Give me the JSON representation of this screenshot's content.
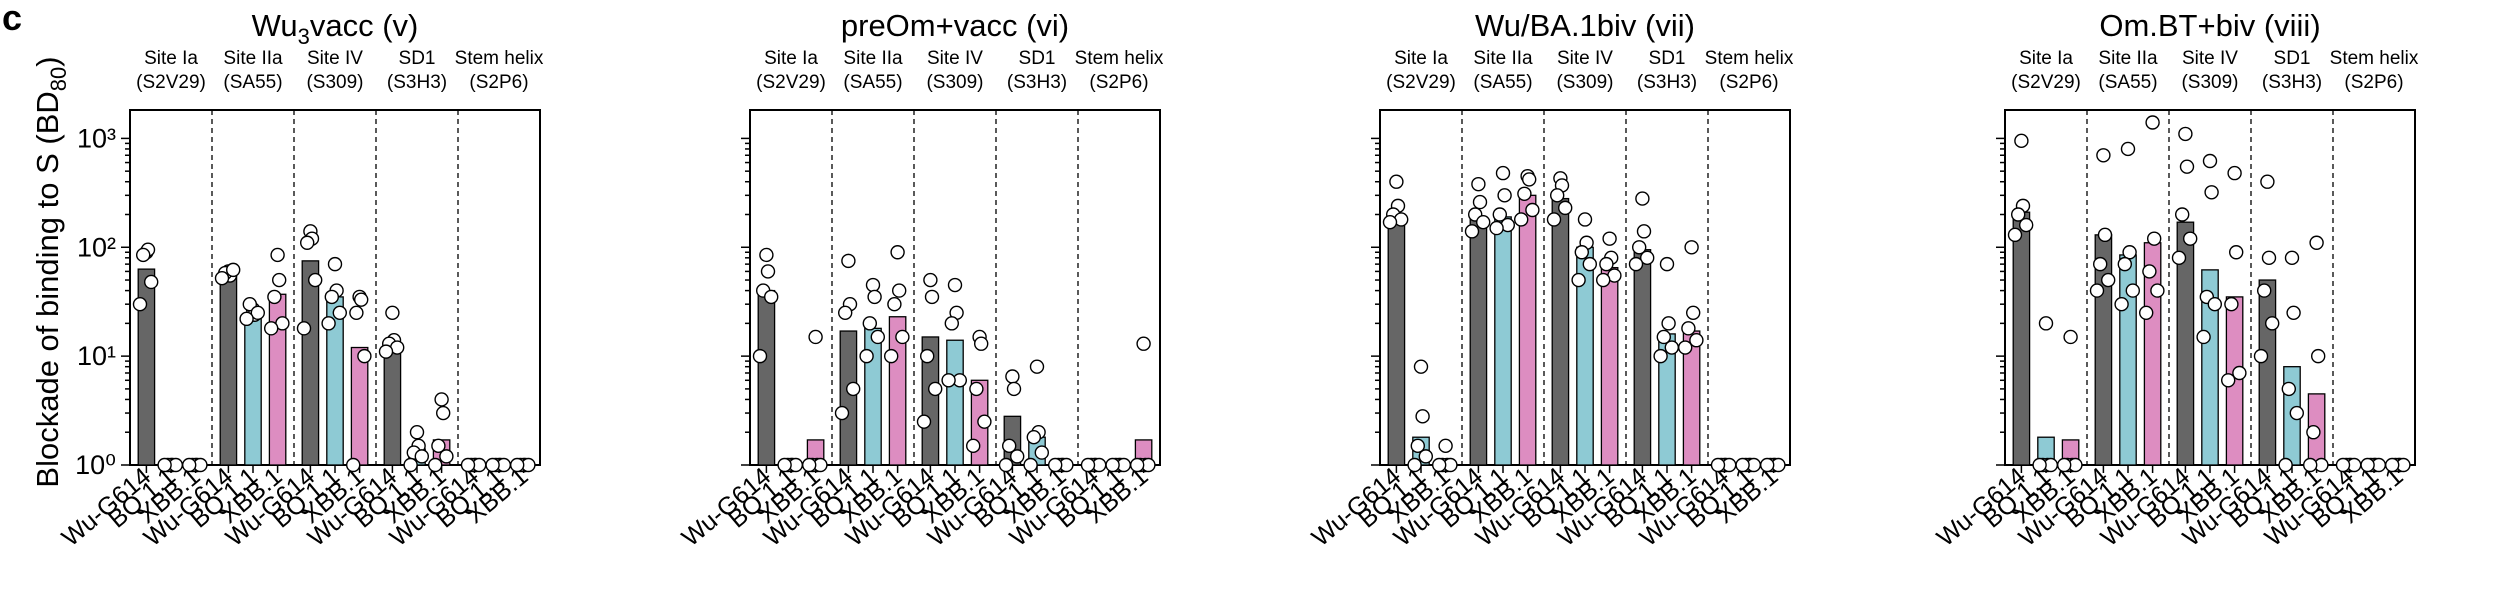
{
  "figure_label": "c",
  "y_axis_label": "Blockade of binding to S (BD",
  "y_axis_label_sub": "80",
  "y_axis_label_close": ")",
  "colors": {
    "Wu-G614": "#666666",
    "BQ.1.1": "#8ecad4",
    "XBB.1": "#dd8dc1",
    "axis": "#000000",
    "point_fill": "#ffffff"
  },
  "chart_data": [
    {
      "type": "bar",
      "title_parts": [
        "Wu",
        "3",
        "vacc (v)"
      ],
      "title_plain": "Wu3vacc (v)",
      "categories": [
        "Wu-G614",
        "BQ.1.1",
        "XBB.1"
      ],
      "y_scale": "log",
      "ylim": [
        1,
        1000
      ],
      "yticks": [
        "10³",
        "10²",
        "10¹",
        "10⁰"
      ],
      "groups": [
        {
          "site": "Site Ia",
          "antibody": "(S2V29)",
          "bars": [
            63,
            1,
            1
          ],
          "points": [
            [
              90,
              95,
              85,
              48,
              30
            ],
            [
              1,
              1,
              1,
              1,
              1
            ],
            [
              1,
              1,
              1,
              1,
              1
            ]
          ]
        },
        {
          "site": "Site IIa",
          "antibody": "(SA55)",
          "bars": [
            57,
            25,
            37
          ],
          "points": [
            [
              60,
              55,
              58,
              62,
              52
            ],
            [
              27,
              24,
              30,
              25,
              22
            ],
            [
              85,
              50,
              35,
              20,
              18
            ]
          ]
        },
        {
          "site": "Site IV",
          "antibody": "(S309)",
          "bars": [
            75,
            35,
            12
          ],
          "points": [
            [
              140,
              120,
              110,
              50,
              18
            ],
            [
              70,
              40,
              35,
              25,
              20
            ],
            [
              35,
              33,
              25,
              10,
              1
            ]
          ]
        },
        {
          "site": "SD1",
          "antibody": "(S3H3)",
          "bars": [
            12,
            1.4,
            1.7
          ],
          "points": [
            [
              25,
              14,
              13,
              12,
              11
            ],
            [
              2,
              1.5,
              1.3,
              1.2,
              1
            ],
            [
              4,
              3,
              1.5,
              1.2,
              1
            ]
          ]
        },
        {
          "site": "Stem helix",
          "antibody": "(S2P6)",
          "bars": [
            1,
            1,
            1
          ],
          "points": [
            [
              1,
              1,
              1,
              1,
              1
            ],
            [
              1,
              1,
              1,
              1,
              1
            ],
            [
              1,
              1,
              1,
              1,
              1
            ]
          ]
        }
      ]
    },
    {
      "type": "bar",
      "title_parts": [
        "preOm+vacc (vi)",
        "",
        ""
      ],
      "title_plain": "preOm+vacc (vi)",
      "categories": [
        "Wu-G614",
        "BQ.1.1",
        "XBB.1"
      ],
      "y_scale": "log",
      "ylim": [
        1,
        1000
      ],
      "groups": [
        {
          "site": "Site Ia",
          "antibody": "(S2V29)",
          "bars": [
            40,
            1,
            1.7
          ],
          "points": [
            [
              85,
              60,
              40,
              35,
              10
            ],
            [
              1,
              1,
              1,
              1,
              1
            ],
            [
              15,
              1,
              1,
              1,
              1
            ]
          ]
        },
        {
          "site": "Site IIa",
          "antibody": "(SA55)",
          "bars": [
            17,
            18,
            23
          ],
          "points": [
            [
              75,
              30,
              25,
              5,
              3
            ],
            [
              45,
              35,
              20,
              15,
              10
            ],
            [
              90,
              40,
              30,
              15,
              10
            ]
          ]
        },
        {
          "site": "Site IV",
          "antibody": "(S309)",
          "bars": [
            15,
            14,
            6
          ],
          "points": [
            [
              50,
              35,
              10,
              5,
              2.5
            ],
            [
              45,
              25,
              20,
              6,
              6
            ],
            [
              15,
              13,
              5,
              2.5,
              1.5
            ]
          ]
        },
        {
          "site": "SD1",
          "antibody": "(S3H3)",
          "bars": [
            2.8,
            1.8,
            1
          ],
          "points": [
            [
              6.5,
              5,
              1.5,
              1.2,
              1
            ],
            [
              8,
              2,
              1.8,
              1.3,
              1
            ],
            [
              1,
              1,
              1,
              1,
              1
            ]
          ]
        },
        {
          "site": "Stem helix",
          "antibody": "(S2P6)",
          "bars": [
            1,
            1,
            1.7
          ],
          "points": [
            [
              1,
              1,
              1,
              1,
              1
            ],
            [
              1,
              1,
              1,
              1,
              1
            ],
            [
              13,
              1,
              1,
              1,
              1
            ]
          ]
        }
      ]
    },
    {
      "type": "bar",
      "title_parts": [
        "Wu/BA.1biv (vii)",
        "",
        ""
      ],
      "title_plain": "Wu/BA.1biv (vii)",
      "categories": [
        "Wu-G614",
        "BQ.1.1",
        "XBB.1"
      ],
      "y_scale": "log",
      "ylim": [
        1,
        1000
      ],
      "groups": [
        {
          "site": "Site Ia",
          "antibody": "(S2V29)",
          "bars": [
            170,
            1.8,
            1
          ],
          "points": [
            [
              400,
              240,
              200,
              180,
              170
            ],
            [
              8,
              2.8,
              1.5,
              1.2,
              1
            ],
            [
              1.5,
              1,
              1,
              1,
              1
            ]
          ]
        },
        {
          "site": "Site IIa",
          "antibody": "(SA55)",
          "bars": [
            190,
            190,
            300
          ],
          "points": [
            [
              380,
              260,
              200,
              170,
              140
            ],
            [
              480,
              300,
              200,
              160,
              150
            ],
            [
              450,
              420,
              310,
              220,
              180
            ]
          ]
        },
        {
          "site": "Site IV",
          "antibody": "(S309)",
          "bars": [
            280,
            100,
            65
          ],
          "points": [
            [
              430,
              370,
              300,
              230,
              180
            ],
            [
              180,
              110,
              90,
              70,
              50
            ],
            [
              120,
              80,
              70,
              55,
              50
            ]
          ]
        },
        {
          "site": "SD1",
          "antibody": "(S3H3)",
          "bars": [
            95,
            16,
            17
          ],
          "points": [
            [
              280,
              140,
              100,
              80,
              70
            ],
            [
              70,
              20,
              15,
              12,
              10
            ],
            [
              100,
              25,
              18,
              14,
              12
            ]
          ]
        },
        {
          "site": "Stem helix",
          "antibody": "(S2P6)",
          "bars": [
            1,
            1,
            1
          ],
          "points": [
            [
              1,
              1,
              1,
              1,
              1
            ],
            [
              1,
              1,
              1,
              1,
              1
            ],
            [
              1,
              1,
              1,
              1,
              1
            ]
          ]
        }
      ]
    },
    {
      "type": "bar",
      "title_parts": [
        "Om.BT+biv (viii)",
        "",
        ""
      ],
      "title_plain": "Om.BT+biv (viii)",
      "categories": [
        "Wu-G614",
        "BQ.1.1",
        "XBB.1"
      ],
      "y_scale": "log",
      "ylim": [
        1,
        1000
      ],
      "groups": [
        {
          "site": "Site Ia",
          "antibody": "(S2V29)",
          "bars": [
            210,
            1.8,
            1.7
          ],
          "points": [
            [
              950,
              240,
              200,
              160,
              130
            ],
            [
              20,
              1,
              1,
              1,
              1
            ],
            [
              15,
              1,
              1,
              1,
              1
            ]
          ]
        },
        {
          "site": "Site IIa",
          "antibody": "(SA55)",
          "bars": [
            130,
            85,
            110
          ],
          "points": [
            [
              700,
              130,
              70,
              50,
              40
            ],
            [
              800,
              90,
              70,
              40,
              30
            ],
            [
              1400,
              120,
              60,
              40,
              25
            ]
          ]
        },
        {
          "site": "Site IV",
          "antibody": "(S309)",
          "bars": [
            170,
            62,
            35
          ],
          "points": [
            [
              1100,
              550,
              200,
              120,
              80
            ],
            [
              620,
              320,
              35,
              30,
              15
            ],
            [
              480,
              90,
              30,
              7,
              6
            ]
          ]
        },
        {
          "site": "SD1",
          "antibody": "(S3H3)",
          "bars": [
            50,
            8,
            4.5
          ],
          "points": [
            [
              400,
              80,
              40,
              20,
              10
            ],
            [
              80,
              25,
              5,
              3,
              1
            ],
            [
              110,
              10,
              2,
              1,
              1
            ]
          ]
        },
        {
          "site": "Stem helix",
          "antibody": "(S2P6)",
          "bars": [
            1,
            1,
            1
          ],
          "points": [
            [
              1,
              1,
              1,
              1,
              1
            ],
            [
              1,
              1,
              1,
              1,
              1
            ],
            [
              1,
              1,
              1,
              1,
              1
            ]
          ]
        }
      ]
    }
  ]
}
